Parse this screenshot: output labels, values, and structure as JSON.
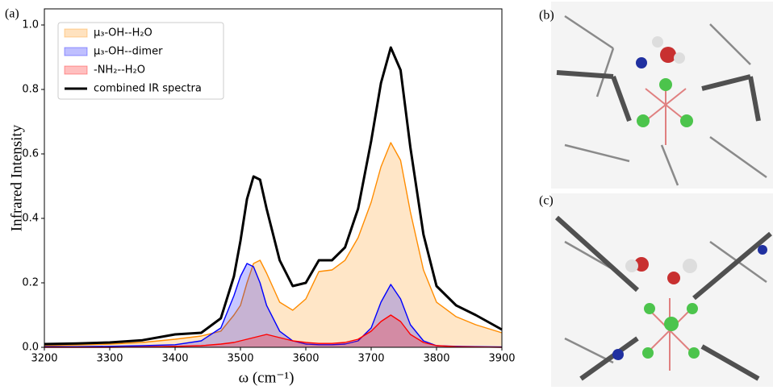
{
  "chart_data": {
    "type": "area-line",
    "panel_label": "(a)",
    "xlabel": "ω (cm⁻¹)",
    "ylabel": "Infrared Intensity",
    "xlim": [
      3200,
      3900
    ],
    "xticks": [
      3200,
      3300,
      3400,
      3500,
      3600,
      3700,
      3800,
      3900
    ],
    "ylim": [
      0,
      1.05
    ],
    "yticks": [
      {
        "value": 0,
        "label": "0.0"
      },
      {
        "value": 0.2,
        "label": "0.2"
      },
      {
        "value": 0.4,
        "label": "0.4"
      },
      {
        "value": 0.6,
        "label": "0.6"
      },
      {
        "value": 0.8,
        "label": "0.8"
      },
      {
        "value": 1.0,
        "label": "1.0"
      }
    ],
    "legend": "upper left",
    "x": [
      3200,
      3250,
      3300,
      3350,
      3400,
      3440,
      3470,
      3490,
      3500,
      3510,
      3520,
      3530,
      3540,
      3560,
      3580,
      3600,
      3620,
      3640,
      3660,
      3680,
      3700,
      3715,
      3730,
      3745,
      3760,
      3780,
      3800,
      3830,
      3860,
      3900
    ],
    "series": [
      {
        "name": "μ₃-OH--H₂O",
        "color": "#ff8c00",
        "area": true,
        "values": [
          0.005,
          0.007,
          0.01,
          0.015,
          0.025,
          0.035,
          0.05,
          0.1,
          0.13,
          0.2,
          0.26,
          0.27,
          0.23,
          0.14,
          0.115,
          0.15,
          0.235,
          0.24,
          0.27,
          0.34,
          0.45,
          0.56,
          0.635,
          0.58,
          0.42,
          0.24,
          0.14,
          0.095,
          0.07,
          0.045
        ]
      },
      {
        "name": "μ₃-OH--dimer",
        "color": "#0000ff",
        "area": true,
        "values": [
          0.002,
          0.002,
          0.003,
          0.005,
          0.008,
          0.02,
          0.06,
          0.16,
          0.22,
          0.26,
          0.25,
          0.2,
          0.13,
          0.05,
          0.02,
          0.01,
          0.008,
          0.008,
          0.01,
          0.02,
          0.06,
          0.14,
          0.195,
          0.15,
          0.07,
          0.02,
          0.005,
          0.003,
          0.002,
          0.001
        ]
      },
      {
        "name": "-NH₂--H₂O",
        "color": "#ff0000",
        "area": true,
        "values": [
          0,
          0,
          0,
          0.001,
          0.003,
          0.005,
          0.01,
          0.015,
          0.02,
          0.025,
          0.03,
          0.035,
          0.04,
          0.03,
          0.02,
          0.015,
          0.012,
          0.012,
          0.015,
          0.025,
          0.05,
          0.08,
          0.1,
          0.08,
          0.04,
          0.015,
          0.005,
          0.002,
          0.001,
          0
        ]
      },
      {
        "name": "combined IR spectra",
        "color": "#000000",
        "area": false,
        "values": [
          0.01,
          0.012,
          0.015,
          0.022,
          0.04,
          0.045,
          0.09,
          0.22,
          0.33,
          0.46,
          0.53,
          0.52,
          0.43,
          0.27,
          0.19,
          0.2,
          0.27,
          0.27,
          0.31,
          0.43,
          0.64,
          0.82,
          0.93,
          0.86,
          0.62,
          0.35,
          0.19,
          0.13,
          0.1,
          0.055
        ]
      }
    ]
  },
  "panels": {
    "b": "(b)",
    "c": "(c)"
  }
}
